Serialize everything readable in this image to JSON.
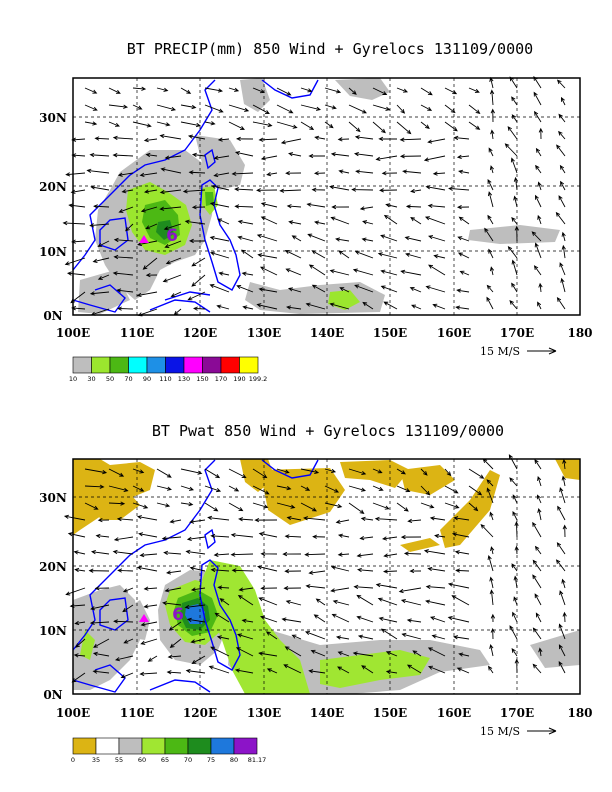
{
  "panels": [
    {
      "title": "BT PRECIP(mm) 850 Wind + Gyrelocs 131109/0000",
      "lon_labels": [
        "100E",
        "110E",
        "120E",
        "130E",
        "140E",
        "150E",
        "160E",
        "170E",
        "180"
      ],
      "lat_labels": [
        "0N",
        "10N",
        "20N",
        "30N"
      ],
      "reference_vector": "15 M/S",
      "colorbar": {
        "labels": [
          "10",
          "30",
          "50",
          "70",
          "90",
          "110",
          "130",
          "150",
          "170",
          "190",
          "199.2"
        ],
        "colors": [
          "#bebebe",
          "#9be62e",
          "#4cb814",
          "#00ffff",
          "#1e90e6",
          "#0a14e6",
          "#ff00ff",
          "#8a0a96",
          "#ff0000",
          "#ffff00"
        ]
      }
    },
    {
      "title": "BT Pwat 850 Wind + Gyrelocs 131109/0000",
      "lon_labels": [
        "100E",
        "110E",
        "120E",
        "130E",
        "140E",
        "150E",
        "160E",
        "170E",
        "180"
      ],
      "lat_labels": [
        "0N",
        "10N",
        "20N",
        "30N"
      ],
      "reference_vector": "15 M/S",
      "colorbar": {
        "labels": [
          "0",
          "35",
          "55",
          "60",
          "65",
          "70",
          "75",
          "80",
          "81.17"
        ],
        "colors": [
          "#dcb414",
          "#ffffff",
          "#bebebe",
          "#a0e632",
          "#4cb814",
          "#1e8c1e",
          "#1e78dc",
          "#8c14c8"
        ]
      }
    }
  ]
}
